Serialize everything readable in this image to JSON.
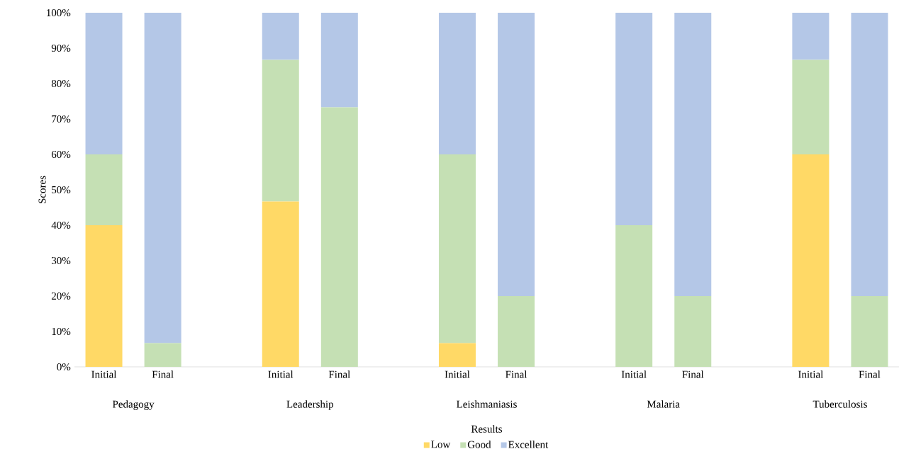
{
  "chart_data": {
    "type": "bar",
    "stacked": true,
    "ylabel": "Scores",
    "legend_title": "Results",
    "legend": "bottom",
    "categories": [
      "Initial",
      "Final",
      null,
      "Initial",
      "Final",
      null,
      "Initial",
      "Final",
      null,
      "Initial",
      "Final",
      null,
      "Initial",
      "Final"
    ],
    "annotations": [
      "Pedagogy",
      "Leadership",
      "Leishmaniasis",
      "Malaria",
      "Tuberculosis"
    ],
    "series": [
      {
        "name": "Low",
        "color": "#ffd966",
        "values": [
          40,
          0,
          null,
          46.7,
          0,
          null,
          6.7,
          0,
          null,
          0,
          0,
          null,
          60,
          0
        ]
      },
      {
        "name": "Good",
        "color": "#c5e0b4",
        "values": [
          20,
          6.7,
          null,
          40,
          73.3,
          null,
          53.3,
          20,
          null,
          40,
          20,
          null,
          26.7,
          20
        ]
      },
      {
        "name": "Excellent",
        "color": "#b4c7e7",
        "values": [
          40,
          93.3,
          null,
          13.3,
          26.7,
          null,
          40,
          80,
          null,
          60,
          80,
          null,
          13.3,
          80
        ]
      }
    ],
    "ylim": [
      0,
      100
    ],
    "yticks": [
      {
        "value": 0,
        "label": "0%"
      },
      {
        "value": 10,
        "label": "10%"
      },
      {
        "value": 20,
        "label": "20%"
      },
      {
        "value": 30,
        "label": "30%"
      },
      {
        "value": 40,
        "label": "40%"
      },
      {
        "value": 50,
        "label": "50%"
      },
      {
        "value": 60,
        "label": "60%"
      },
      {
        "value": 70,
        "label": "70%"
      },
      {
        "value": 80,
        "label": "80%"
      },
      {
        "value": 90,
        "label": "90%"
      },
      {
        "value": 100,
        "label": "100%"
      }
    ]
  }
}
